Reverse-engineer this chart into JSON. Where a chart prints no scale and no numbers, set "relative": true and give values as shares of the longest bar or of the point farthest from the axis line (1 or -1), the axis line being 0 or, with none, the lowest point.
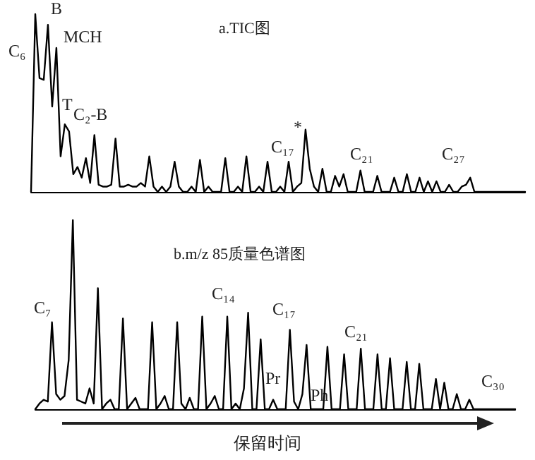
{
  "chart_data": [
    {
      "type": "line",
      "title": "a.TIC图",
      "relative": true,
      "grid": false,
      "line_style": "solid",
      "annotations": [
        "C₆",
        "B",
        "MCH",
        "T",
        "C₂-B",
        "C₁₇",
        "*",
        "C₂₁",
        "C₂₇"
      ],
      "categories": [
        null,
        null,
        null,
        null,
        null,
        null,
        null,
        null,
        null,
        null,
        null,
        null,
        null,
        null,
        null,
        null,
        null,
        null,
        null,
        null,
        null,
        null,
        null,
        null,
        null,
        null,
        null,
        null,
        null,
        null,
        null,
        null,
        null,
        null,
        null,
        null,
        null,
        null,
        null,
        null,
        null,
        null,
        null,
        null,
        null,
        null,
        null,
        null,
        null,
        null,
        null,
        null,
        null,
        null,
        null,
        null,
        null,
        null,
        null,
        null,
        null,
        null,
        null,
        null,
        null,
        null,
        null,
        null,
        null,
        null,
        null,
        null,
        null,
        null,
        null,
        null,
        null,
        null,
        null,
        null,
        null,
        null,
        null,
        null,
        null,
        null,
        null,
        null,
        null,
        null,
        null,
        null,
        null,
        null,
        null,
        null,
        null,
        null,
        null,
        null,
        null,
        null,
        null,
        null,
        null,
        null,
        null,
        null,
        null,
        null,
        null,
        null,
        null,
        null,
        null,
        null,
        null,
        null
      ],
      "series": [
        {
          "color": "#000000",
          "values": [
            0,
            1.0,
            0.64,
            0.63,
            0.94,
            0.48,
            0.81,
            0.2,
            0.38,
            0.34,
            0.1,
            0.14,
            0.08,
            0.19,
            0.05,
            0.32,
            0.04,
            0.03,
            0.03,
            0.04,
            0.3,
            0.03,
            0.03,
            0.04,
            0.03,
            0.03,
            0.05,
            0.03,
            0.2,
            0.03,
            0,
            0.03,
            0,
            0.03,
            0.17,
            0.03,
            0,
            0,
            0.03,
            0,
            0.18,
            0,
            0.03,
            0,
            0,
            0,
            0.19,
            0,
            0,
            0.03,
            0,
            0.2,
            0,
            0,
            0.03,
            0,
            0.17,
            0,
            0,
            0.03,
            0,
            0.17,
            0,
            0.03,
            0.05,
            0.35,
            0.13,
            0.03,
            0,
            0.13,
            0,
            0,
            0.09,
            0.03,
            0.1,
            0,
            0,
            0,
            0.12,
            0,
            0,
            0,
            0.09,
            0,
            0,
            0,
            0.08,
            0,
            0,
            0.1,
            0,
            0,
            0.08,
            0,
            0.06,
            0,
            0.06,
            0,
            0,
            0.04,
            0,
            0,
            0.03,
            0.04,
            0.08,
            0,
            0,
            0,
            0,
            0,
            0,
            0,
            0,
            0,
            0,
            0,
            0,
            0
          ]
        }
      ]
    },
    {
      "type": "line",
      "title": "b.m/z 85质量色谱图",
      "xlabel": "保留时间",
      "relative": true,
      "grid": false,
      "line_style": "solid",
      "annotations": [
        "C₇",
        "C₁₄",
        "C₁₇",
        "Pr",
        "Ph",
        "C₂₁",
        "C₃₀"
      ],
      "categories": [
        null,
        null,
        null,
        null,
        null,
        null,
        null,
        null,
        null,
        null,
        null,
        null,
        null,
        null,
        null,
        null,
        null,
        null,
        null,
        null,
        null,
        null,
        null,
        null,
        null,
        null,
        null,
        null,
        null,
        null,
        null,
        null,
        null,
        null,
        null,
        null,
        null,
        null,
        null,
        null,
        null,
        null,
        null,
        null,
        null,
        null,
        null,
        null,
        null,
        null,
        null,
        null,
        null,
        null,
        null,
        null,
        null,
        null,
        null,
        null,
        null,
        null,
        null,
        null,
        null,
        null,
        null,
        null,
        null,
        null,
        null,
        null,
        null,
        null,
        null,
        null,
        null,
        null,
        null,
        null,
        null,
        null,
        null,
        null,
        null,
        null,
        null,
        null,
        null,
        null,
        null,
        null,
        null,
        null,
        null,
        null,
        null,
        null,
        null,
        null,
        null,
        null,
        null,
        null,
        null,
        null,
        null,
        null,
        null,
        null,
        null,
        null,
        null,
        null,
        null,
        null
      ],
      "series": [
        {
          "color": "#000000",
          "values": [
            0,
            0.03,
            0.05,
            0.04,
            0.46,
            0.08,
            0.05,
            0.07,
            0.26,
            1.0,
            0.05,
            0.04,
            0.03,
            0.11,
            0.03,
            0.64,
            0,
            0.03,
            0.05,
            0,
            0,
            0.48,
            0,
            0.03,
            0.06,
            0,
            0,
            0,
            0.46,
            0,
            0.03,
            0.07,
            0,
            0,
            0.46,
            0.03,
            0,
            0.06,
            0,
            0,
            0.49,
            0,
            0.03,
            0.07,
            0,
            0,
            0.49,
            0,
            0.03,
            0,
            0.11,
            0.51,
            0,
            0,
            0.37,
            0,
            0,
            0.05,
            0,
            0,
            0,
            0.42,
            0.04,
            0,
            0.08,
            0.34,
            0,
            0,
            0,
            0,
            0.33,
            0,
            0,
            0,
            0.29,
            0,
            0,
            0,
            0.32,
            0,
            0,
            0,
            0.29,
            0,
            0,
            0.27,
            0,
            0,
            0,
            0.25,
            0,
            0,
            0.24,
            0,
            0,
            0,
            0.16,
            0,
            0.14,
            0,
            0,
            0.08,
            0,
            0,
            0.05,
            0,
            0,
            0,
            0,
            0,
            0,
            0,
            0,
            0,
            0,
            0
          ]
        }
      ]
    }
  ]
}
